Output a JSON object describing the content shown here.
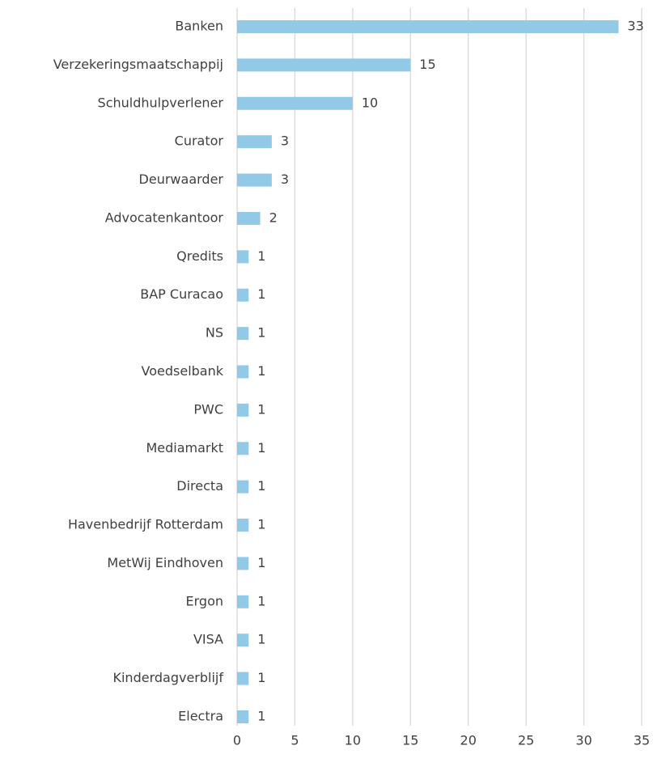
{
  "chart_data": {
    "type": "bar",
    "orientation": "horizontal",
    "categories": [
      "Banken",
      "Verzekeringsmaatschappij",
      "Schuldhulpverlener",
      "Curator",
      "Deurwaarder",
      "Advocatenkantoor",
      "Qredits",
      "BAP Curacao",
      "NS",
      "Voedselbank",
      "PWC",
      "Mediamarkt",
      "Directa",
      "Havenbedrijf Rotterdam",
      "MetWij Eindhoven",
      "Ergon",
      "VISA",
      "Kinderdagverblijf",
      "Electra"
    ],
    "values": [
      33,
      15,
      10,
      3,
      3,
      2,
      1,
      1,
      1,
      1,
      1,
      1,
      1,
      1,
      1,
      1,
      1,
      1,
      1
    ],
    "color": "#92c9e6",
    "xlim": [
      0,
      35
    ],
    "xticks": [
      0,
      5,
      10,
      15,
      20,
      25,
      30,
      35
    ],
    "grid": true
  }
}
